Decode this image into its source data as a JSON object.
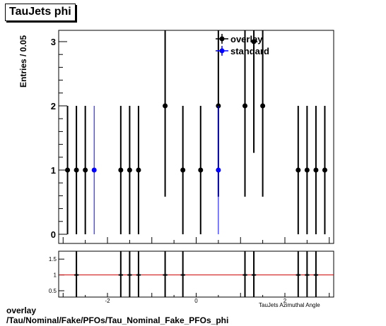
{
  "chart_data": [
    {
      "type": "scatter",
      "title": "TauJets phi",
      "ylabel": "Entries / 0.05",
      "xlim": [
        -3.1,
        3.1
      ],
      "ylim": [
        0,
        3.1
      ],
      "x_tick_labels": [
        "-2",
        "0",
        "2"
      ],
      "x_ticks": [
        -2,
        0,
        2
      ],
      "y_ticks": [
        0,
        1,
        2,
        3
      ],
      "y_tick_labels": [
        "0",
        "1",
        "2",
        "3"
      ],
      "legend_position": "top-right",
      "legend": [
        "overlay",
        "standard"
      ],
      "series": [
        {
          "name": "overlay",
          "color": "#000000",
          "x": [
            -2.9,
            -2.7,
            -2.5,
            -1.7,
            -1.5,
            -1.3,
            -0.7,
            -0.3,
            0.1,
            0.5,
            1.1,
            1.3,
            1.5,
            2.3,
            2.5,
            2.7,
            2.9
          ],
          "y": [
            1,
            1,
            1,
            1,
            1,
            1,
            2,
            1,
            1,
            2,
            2,
            3,
            2,
            1,
            1,
            1,
            1
          ]
        },
        {
          "name": "standard",
          "color": "#0000ff",
          "x": [
            -2.3,
            0.5
          ],
          "y": [
            1,
            1
          ]
        }
      ]
    },
    {
      "type": "scatter",
      "xlim": [
        -3.1,
        3.1
      ],
      "ylim": [
        0.3,
        1.75
      ],
      "y_ticks": [
        0.5,
        1,
        1.5
      ],
      "y_tick_labels": [
        "0.5",
        "1",
        "1.5"
      ],
      "x_ticks": [
        -2,
        0,
        2
      ],
      "x_tick_labels": [
        "-2",
        "0",
        "2"
      ],
      "xlabel": "TauJets Azimuthal Angle",
      "reference_line": 1,
      "reference_color": "#cc0000",
      "x": [
        -2.7,
        -1.7,
        -1.5,
        -1.3,
        -0.7,
        -0.3,
        1.1,
        1.3,
        2.3,
        2.5,
        2.7
      ],
      "y": [
        1,
        1,
        1,
        1,
        1,
        1,
        1,
        1,
        1,
        1,
        1
      ]
    }
  ],
  "footer": {
    "line1": "overlay",
    "line2": "/Tau/Nominal/Fake/PFOs/Tau_Nominal_Fake_PFOs_phi"
  }
}
